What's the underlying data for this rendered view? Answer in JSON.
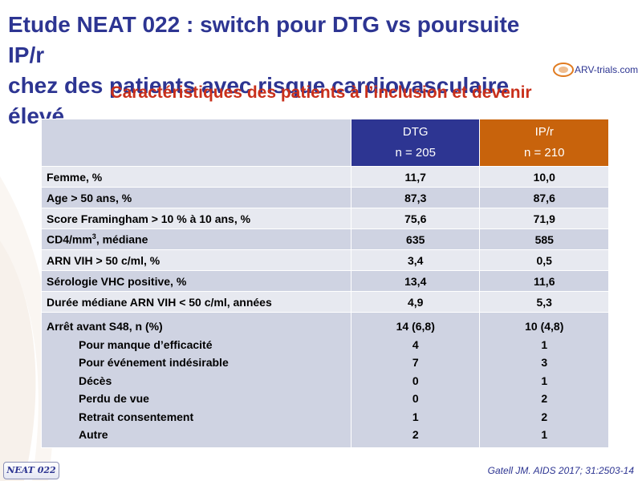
{
  "title_line1": "Etude NEAT 022 : switch pour DTG vs poursuite IP/r",
  "title_line2": "chez des patients avec risque cardiovasculaire élevé",
  "logo_text": "ARV-trials.com",
  "subtitle": "Caractéristiques des patients à l’inclusion et devenir",
  "table": {
    "header": {
      "dtg": "DTG",
      "dtg_n": "n = 205",
      "ipr": "IP/r",
      "ipr_n": "n = 210"
    },
    "rows": [
      {
        "label": "Femme, %",
        "dtg": "11,7",
        "ipr": "10,0"
      },
      {
        "label_pre": "Age > 50 ans, %",
        "dtg": "87,3",
        "ipr": "87,6"
      },
      {
        "label": "Score Framingham > 10 % à 10 ans, %",
        "dtg": "75,6",
        "ipr": "71,9"
      },
      {
        "label_pre": "CD4/mm",
        "label_sup": "3",
        "label_post": ", médiane",
        "dtg": "635",
        "ipr": "585"
      },
      {
        "label": "ARN VIH > 50 c/ml, %",
        "dtg": "3,4",
        "ipr": "0,5"
      },
      {
        "label": "Sérologie VHC positive, %",
        "dtg": "13,4",
        "ipr": "11,6"
      },
      {
        "label": "Durée médiane ARN VIH < 50 c/ml, années",
        "dtg": "4,9",
        "ipr": "5,3"
      }
    ],
    "stop": {
      "label": "Arrêt avant S48, n (%)",
      "dtg": "14 (6,8)",
      "ipr": "10 (4,8)",
      "reasons": [
        {
          "label": "Pour manque d’efficacité",
          "dtg": "4",
          "ipr": "1"
        },
        {
          "label": "Pour événement indésirable",
          "dtg": "7",
          "ipr": "3"
        },
        {
          "label": "Décès",
          "dtg": "0",
          "ipr": "1"
        },
        {
          "label": "Perdu de vue",
          "dtg": "0",
          "ipr": "2"
        },
        {
          "label": "Retrait consentement",
          "dtg": "1",
          "ipr": "2"
        },
        {
          "label": "Autre",
          "dtg": "2",
          "ipr": "1"
        }
      ]
    }
  },
  "badge": "NEAT 022",
  "citation": "Gatell JM. AIDS 2017; 31:2503-14",
  "colors": {
    "title": "#2d3592",
    "subtitle": "#c9301b",
    "dtg": "#2d3592",
    "ipr": "#c8630c",
    "row_light": "#e7e9f0",
    "row_dark": "#cfd3e2"
  }
}
